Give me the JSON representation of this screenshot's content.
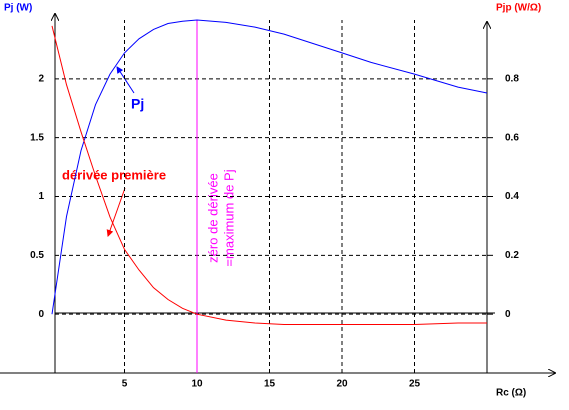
{
  "chart_data": {
    "type": "line",
    "y_label": "Pj (W)",
    "y2_label": "Pjp (W/Ω)",
    "x_label": "Rc (Ω)",
    "annotations": [
      "Pj",
      "dérivée première",
      "zéro de dérivée",
      "=maximum de Pj"
    ],
    "vline": 10,
    "vline_color": "#ff00ff",
    "x": [
      0,
      1,
      2,
      3,
      4,
      5,
      6,
      7,
      8,
      9,
      10,
      12,
      14,
      16,
      18,
      20,
      22,
      25,
      28,
      30
    ],
    "series": [
      {
        "name": "Pj",
        "color": "#0000ff",
        "values": [
          0,
          0.83,
          1.39,
          1.78,
          2.04,
          2.22,
          2.34,
          2.42,
          2.47,
          2.49,
          2.5,
          2.48,
          2.44,
          2.38,
          2.3,
          2.22,
          2.14,
          2.04,
          1.93,
          1.88
        ]
      },
      {
        "name": "dérivée première",
        "color": "#ff0000",
        "axis": "y2",
        "values": [
          0.98,
          0.78,
          0.62,
          0.47,
          0.33,
          0.22,
          0.15,
          0.09,
          0.05,
          0.02,
          0,
          -0.02,
          -0.03,
          -0.035,
          -0.035,
          -0.035,
          -0.035,
          -0.035,
          -0.03,
          -0.03
        ]
      }
    ],
    "xlim": [
      0,
      30
    ],
    "xticks": [
      5,
      10,
      15,
      20,
      25
    ],
    "ylim": [
      -0.5,
      2.5
    ],
    "yticks": [
      0,
      0.5,
      1,
      1.5,
      2
    ],
    "y2lim": [
      -0.2,
      1.0
    ],
    "y2ticks": [
      0,
      0.2,
      0.4,
      0.6,
      0.8
    ],
    "grid": true
  }
}
